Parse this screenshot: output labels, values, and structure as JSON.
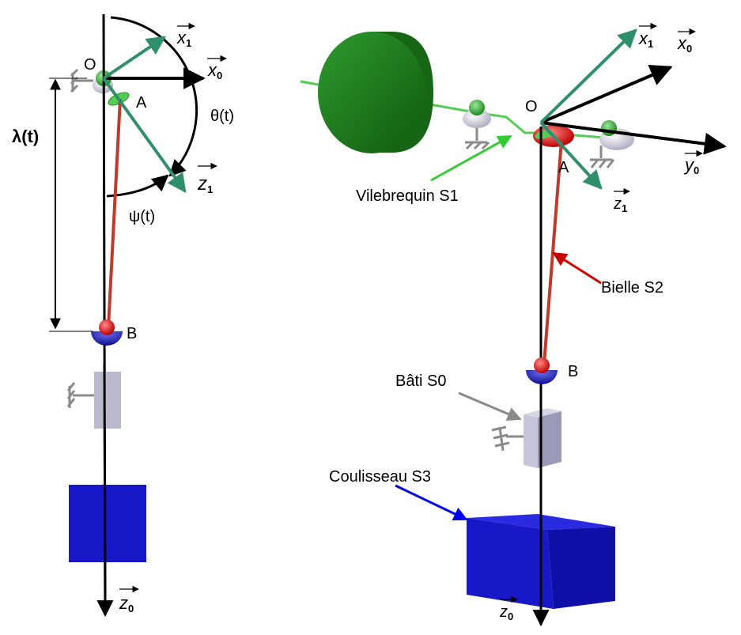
{
  "left_view": {
    "point_O": "O",
    "point_A": "A",
    "point_B": "B",
    "vec_x1": {
      "letter": "x",
      "sub": "1"
    },
    "vec_x0": {
      "letter": "x",
      "sub": "0"
    },
    "vec_z1": {
      "letter": "z",
      "sub": "1"
    },
    "vec_z0": {
      "letter": "z",
      "sub": "0"
    },
    "angle_theta": "θ(t)",
    "angle_psi": "ψ(t)",
    "length_lambda": "λ(t)"
  },
  "right_view": {
    "point_O": "O",
    "point_A": "A",
    "point_B": "B",
    "vec_x1": {
      "letter": "x",
      "sub": "1"
    },
    "vec_x0": {
      "letter": "x",
      "sub": "0"
    },
    "vec_y0": {
      "letter": "y",
      "sub": "0"
    },
    "vec_z1": {
      "letter": "z",
      "sub": "1"
    },
    "vec_z0": {
      "letter": "z",
      "sub": "0"
    },
    "label_crankshaft": "Vilebrequin S1",
    "label_rod": "Bielle S2",
    "label_frame": "Bâti S0",
    "label_slider": "Coulisseau S3"
  },
  "colors": {
    "crankshaft_green": "#1f7a1f",
    "rod_red": "#c0392b",
    "frame_gray": "#b9b9cf",
    "slider_blue": "#1818c8",
    "vector_green": "#2f8f6a",
    "arrow_crankshaft": "#33cc33",
    "arrow_rod": "#cc0000",
    "arrow_frame": "#8a8a8a",
    "arrow_slider": "#0000ee"
  }
}
